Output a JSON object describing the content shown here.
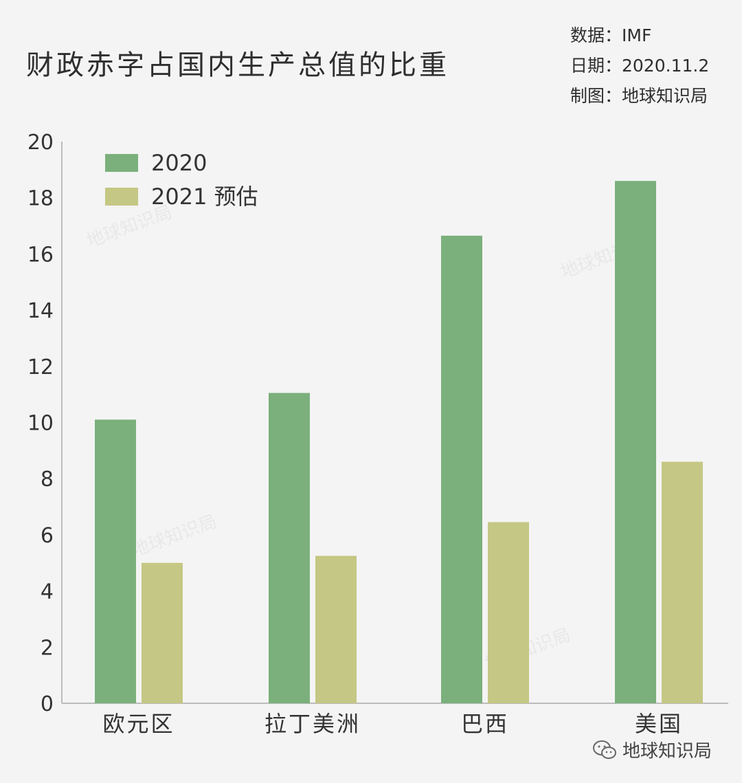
{
  "header": {
    "title": "财政赤字占国内生产总值的比重",
    "source_line": "数据：IMF",
    "date_line": "日期：2020.11.2",
    "credit_line": "制图：地球知识局"
  },
  "footer": {
    "brand": "地球知识局",
    "icon": "wechat-icon"
  },
  "watermark": "地球知识局",
  "colors": {
    "series_2020": "#7bb07c",
    "series_2021": "#c5c784",
    "axis": "#999999",
    "text": "#333333"
  },
  "chart_data": {
    "type": "bar",
    "title": "财政赤字占国内生产总值的比重",
    "xlabel": "",
    "ylabel": "",
    "categories": [
      "欧元区",
      "拉丁美洲",
      "巴西",
      "美国"
    ],
    "series": [
      {
        "name": "2020",
        "values": [
          10.1,
          11.05,
          16.65,
          18.6
        ]
      },
      {
        "name": "2021 预估",
        "values": [
          5.0,
          5.25,
          6.45,
          8.6
        ]
      }
    ],
    "ylim": [
      0,
      20
    ],
    "yticks": [
      0,
      2,
      4,
      6,
      8,
      10,
      12,
      14,
      16,
      18,
      20
    ],
    "grid": false,
    "legend_position": "top-left"
  }
}
